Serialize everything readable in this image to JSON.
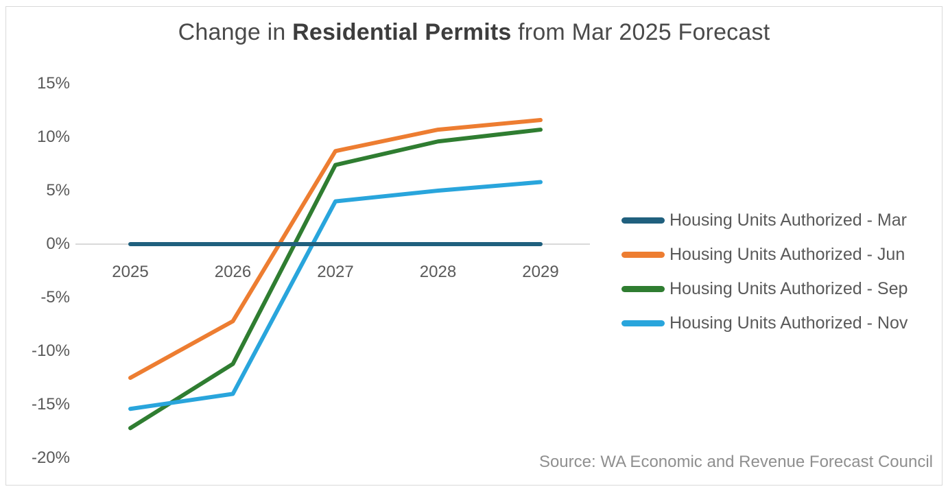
{
  "title": {
    "prefix": "Change in ",
    "bold": "Residential Permits",
    "suffix": " from Mar 2025 Forecast"
  },
  "source": "Source: WA Economic and Revenue Forecast Council",
  "colors": {
    "background": "#FFFFFF",
    "border": "#D9D9D9",
    "axis_line": "#D9D9D9",
    "title_text": "#4A4A4A",
    "axis_text": "#595959",
    "source_text": "#8F8F8F"
  },
  "chart_data": {
    "type": "line",
    "title": "Change in Residential Permits from Mar 2025 Forecast",
    "categories": [
      "2025",
      "2026",
      "2027",
      "2028",
      "2029"
    ],
    "series": [
      {
        "name": "Housing Units Authorized - Mar",
        "color": "#20607E",
        "values": [
          0,
          0,
          0,
          0,
          0
        ]
      },
      {
        "name": "Housing Units Authorized - Jun",
        "color": "#ED7D31",
        "values": [
          -12.5,
          -7.2,
          8.7,
          10.7,
          11.6
        ]
      },
      {
        "name": "Housing Units Authorized - Sep",
        "color": "#2F7D31",
        "values": [
          -17.2,
          -11.2,
          7.4,
          9.6,
          10.7
        ]
      },
      {
        "name": "Housing Units Authorized - Nov",
        "color": "#29A5DC",
        "values": [
          -15.4,
          -14.0,
          4.0,
          5.0,
          5.8
        ]
      }
    ],
    "ylim": [
      -20,
      15
    ],
    "ytick_values": [
      15,
      10,
      5,
      0,
      -5,
      -10,
      -15,
      -20
    ],
    "ytick_labels": [
      "15%",
      "10%",
      "5%",
      "0%",
      "-5%",
      "-10%",
      "-15%",
      "-20%"
    ],
    "ylabel": "",
    "xlabel": "",
    "grid": false,
    "zero_line": true,
    "legend_position": "right"
  }
}
